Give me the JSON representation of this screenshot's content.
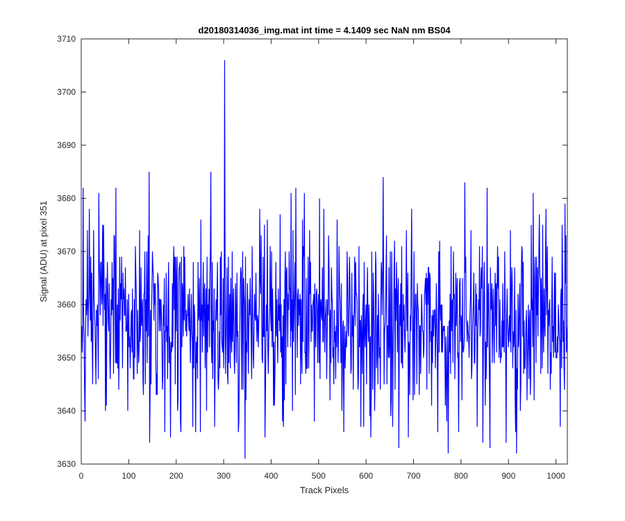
{
  "chart_data": {
    "type": "line",
    "title": "d20180314036_img.mat int time = 4.1409 sec  NaN nm BS04",
    "xlabel": "Track Pixels",
    "ylabel": "Signal (ADU) at pixel 351",
    "xlim": [
      0,
      1024
    ],
    "ylim": [
      3630,
      3710
    ],
    "xticks": [
      "0",
      "100",
      "200",
      "300",
      "400",
      "500",
      "600",
      "700",
      "800",
      "900",
      "1000"
    ],
    "yticks": [
      "3630",
      "3640",
      "3650",
      "3660",
      "3670",
      "3680",
      "3690",
      "3700",
      "3710"
    ],
    "grid": false,
    "legend": "none",
    "line_color": "#0000ff",
    "noise": {
      "num_points": 1024,
      "mean": 3657,
      "std": 8.5
    },
    "highlights": [
      {
        "x": 12,
        "y": 3674
      },
      {
        "x": 16,
        "y": 3678
      },
      {
        "x": 36,
        "y": 3681
      },
      {
        "x": 50,
        "y": 3640
      },
      {
        "x": 142,
        "y": 3685
      },
      {
        "x": 143,
        "y": 3634
      },
      {
        "x": 175,
        "y": 3636
      },
      {
        "x": 209,
        "y": 3636
      },
      {
        "x": 250,
        "y": 3636
      },
      {
        "x": 272,
        "y": 3685
      },
      {
        "x": 280,
        "y": 3637
      },
      {
        "x": 301,
        "y": 3706
      },
      {
        "x": 344,
        "y": 3631
      },
      {
        "x": 375,
        "y": 3678
      },
      {
        "x": 425,
        "y": 3637
      },
      {
        "x": 441,
        "y": 3681
      },
      {
        "x": 451,
        "y": 3682
      },
      {
        "x": 510,
        "y": 3678
      },
      {
        "x": 594,
        "y": 3637
      },
      {
        "x": 609,
        "y": 3635
      },
      {
        "x": 635,
        "y": 3684
      },
      {
        "x": 668,
        "y": 3633
      },
      {
        "x": 750,
        "y": 3636
      },
      {
        "x": 794,
        "y": 3636
      },
      {
        "x": 807,
        "y": 3683
      },
      {
        "x": 845,
        "y": 3634
      },
      {
        "x": 860,
        "y": 3633
      },
      {
        "x": 978,
        "y": 3678
      },
      {
        "x": 1008,
        "y": 3637
      }
    ]
  }
}
